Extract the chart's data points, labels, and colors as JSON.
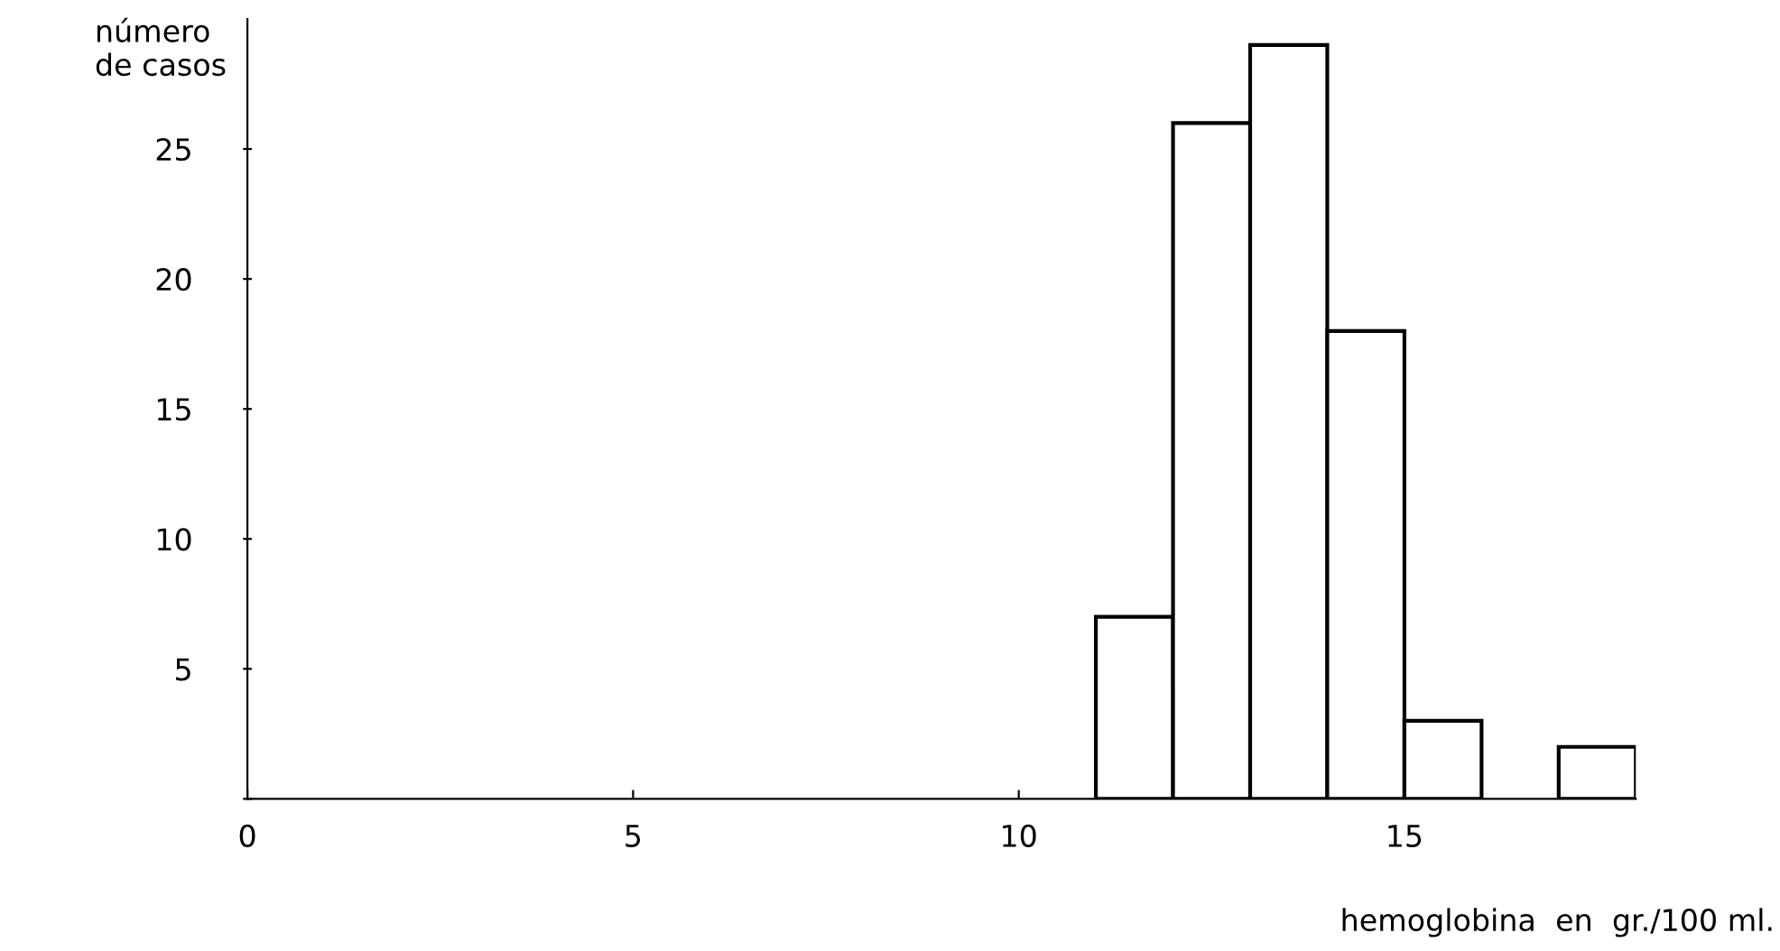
{
  "chart_data": {
    "type": "histogram",
    "ylabel": "número\nde casos",
    "xlabel": "hemoglobina  en  gr./100 ml.",
    "bins": [
      11,
      12,
      13,
      14,
      15,
      16,
      17,
      18
    ],
    "values": [
      7,
      26,
      29,
      18,
      3,
      0,
      2
    ],
    "color": "#ffffff",
    "xlim": [
      0,
      18
    ],
    "ylim": [
      0,
      30
    ],
    "xticks": [
      0,
      5,
      10,
      15
    ],
    "yticks": [
      {
        "value": 0,
        "label": null
      },
      5,
      10,
      15,
      20,
      25
    ],
    "grid": false,
    "legend": false
  }
}
